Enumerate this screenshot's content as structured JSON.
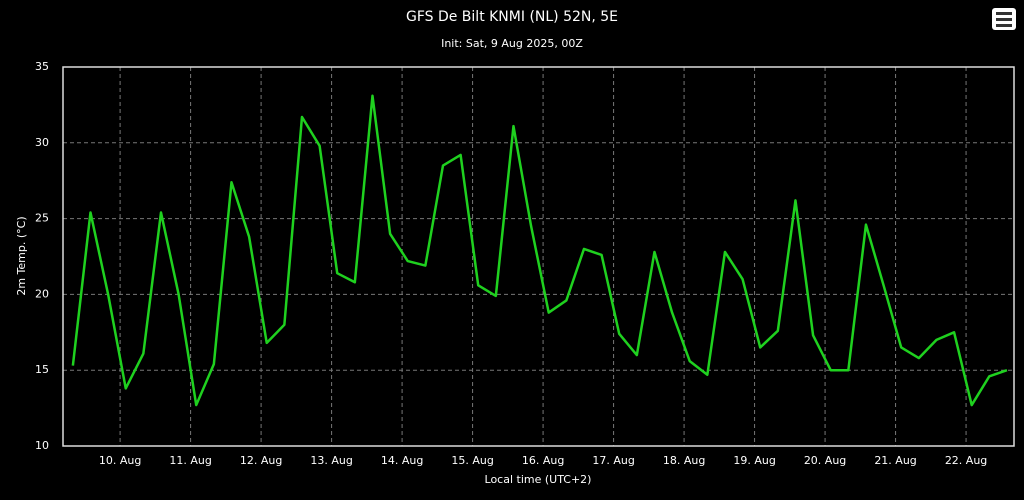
{
  "chart_data": {
    "type": "line",
    "title": "GFS De Bilt KNMI (NL) 52N, 5E",
    "subtitle": "Init: Sat, 9 Aug 2025, 00Z",
    "x_label": "Local time (UTC+2)",
    "y_label": "2m Temp. (°C)",
    "x": [
      9.33,
      9.58,
      9.83,
      10.08,
      10.33,
      10.58,
      10.83,
      11.08,
      11.33,
      11.58,
      11.83,
      12.08,
      12.33,
      12.58,
      12.83,
      13.08,
      13.33,
      13.58,
      13.83,
      14.08,
      14.33,
      14.58,
      14.83,
      15.08,
      15.33,
      15.58,
      15.83,
      16.08,
      16.33,
      16.58,
      16.83,
      17.08,
      17.33,
      17.58,
      17.83,
      18.08,
      18.33,
      18.58,
      18.83,
      19.08,
      19.33,
      19.58,
      19.83,
      20.08,
      20.33,
      20.58,
      20.83,
      21.08,
      21.33,
      21.58,
      21.83,
      22.08,
      22.33,
      22.58
    ],
    "series": [
      {
        "name": "2m Temp.",
        "color": "#1fd11f",
        "values": [
          15.3,
          25.4,
          20.0,
          13.8,
          16.1,
          25.4,
          20.0,
          12.7,
          15.4,
          27.4,
          23.8,
          16.8,
          18.0,
          31.7,
          29.8,
          21.4,
          20.8,
          33.1,
          24.0,
          22.2,
          21.9,
          28.5,
          29.2,
          20.6,
          19.9,
          31.1,
          24.5,
          18.8,
          19.6,
          23.0,
          22.6,
          17.4,
          16.0,
          22.8,
          18.8,
          15.6,
          14.7,
          22.8,
          21.0,
          16.5,
          17.6,
          26.2,
          17.3,
          15.0,
          15.0,
          24.6,
          20.6,
          16.5,
          15.8,
          17.0,
          17.5,
          12.7,
          14.6,
          15.0
        ]
      }
    ],
    "xlim": [
      9.19,
      22.68
    ],
    "xticks": [
      {
        "value": 10,
        "label": "10. Aug"
      },
      {
        "value": 11,
        "label": "11. Aug"
      },
      {
        "value": 12,
        "label": "12. Aug"
      },
      {
        "value": 13,
        "label": "13. Aug"
      },
      {
        "value": 14,
        "label": "14. Aug"
      },
      {
        "value": 15,
        "label": "15. Aug"
      },
      {
        "value": 16,
        "label": "16. Aug"
      },
      {
        "value": 17,
        "label": "17. Aug"
      },
      {
        "value": 18,
        "label": "18. Aug"
      },
      {
        "value": 19,
        "label": "19. Aug"
      },
      {
        "value": 20,
        "label": "20. Aug"
      },
      {
        "value": 21,
        "label": "21. Aug"
      },
      {
        "value": 22,
        "label": "22. Aug"
      }
    ],
    "ylim": [
      10,
      35
    ],
    "yticks": [
      10,
      15,
      20,
      25,
      30,
      35
    ],
    "grid": true
  }
}
